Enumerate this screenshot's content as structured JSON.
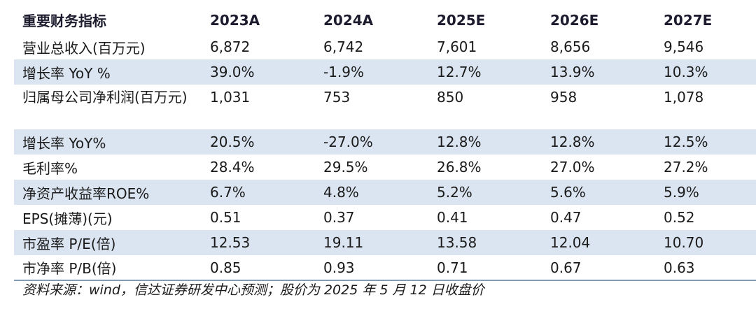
{
  "table": {
    "header": [
      "重要财务指标",
      "2023A",
      "2024A",
      "2025E",
      "2026E",
      "2027E"
    ],
    "rows": [
      {
        "label": "营业总收入(百万元)",
        "values": [
          "6,872",
          "6,742",
          "7,601",
          "8,656",
          "9,546"
        ],
        "shaded": false
      },
      {
        "label": "增长率 YoY %",
        "values": [
          "39.0%",
          "-1.9%",
          "12.7%",
          "13.9%",
          "10.3%"
        ],
        "shaded": true
      },
      {
        "label": "归属母公司净利润(百万元)",
        "values": [
          "1,031",
          "753",
          "850",
          "958",
          "1,078"
        ],
        "shaded": false
      },
      {
        "label": "增长率 YoY%",
        "values": [
          "20.5%",
          "-27.0%",
          "12.8%",
          "12.8%",
          "12.5%"
        ],
        "shaded": true
      },
      {
        "label": "毛利率%",
        "values": [
          "28.4%",
          "29.5%",
          "26.8%",
          "27.0%",
          "27.2%"
        ],
        "shaded": false
      },
      {
        "label": "净资产收益率ROE%",
        "values": [
          "6.7%",
          "4.8%",
          "5.2%",
          "5.6%",
          "5.9%"
        ],
        "shaded": true
      },
      {
        "label": "EPS(摊薄)(元)",
        "values": [
          "0.51",
          "0.37",
          "0.41",
          "0.47",
          "0.52"
        ],
        "shaded": false
      },
      {
        "label": "市盈率 P/E(倍)",
        "values": [
          "12.53",
          "19.11",
          "13.58",
          "12.04",
          "10.70"
        ],
        "shaded": true
      },
      {
        "label": "市净率 P/B(倍)",
        "values": [
          "0.85",
          "0.93",
          "0.71",
          "0.67",
          "0.63"
        ],
        "shaded": false
      }
    ]
  },
  "source_note": "资料来源：wind，信达证券研发中心预测；股价为 2025 年 5 月 12 日收盘价",
  "colors": {
    "row_shade": "#dbe5f1",
    "bottom_rule": "#7f9db9"
  }
}
